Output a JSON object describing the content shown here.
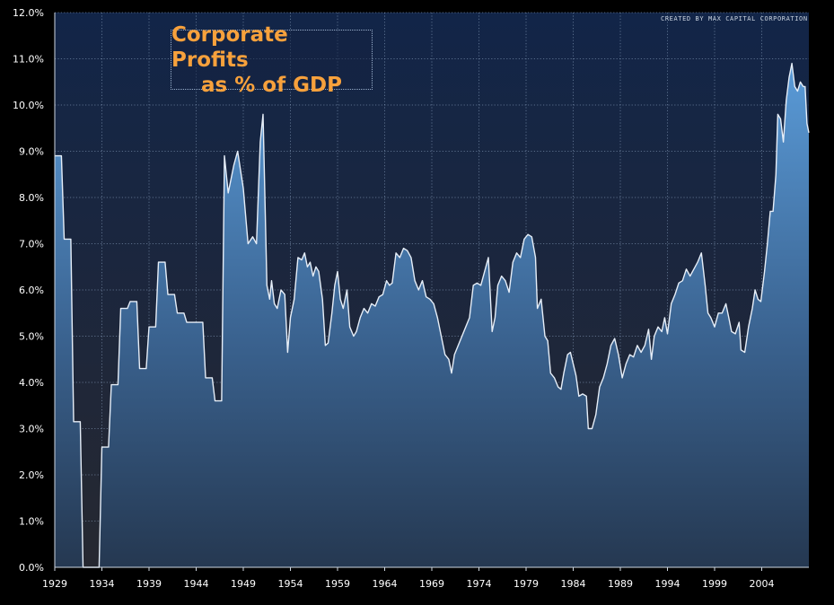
{
  "chart_data": {
    "type": "area",
    "title_lines": [
      "Corporate Profits",
      "as % of GDP"
    ],
    "credit": "CREATED BY MAX CAPITAL CORPORATION",
    "xlabel": "",
    "ylabel": "",
    "xlim": [
      1929,
      2009
    ],
    "ylim": [
      0,
      12
    ],
    "x_ticks": [
      "1929",
      "1934",
      "1939",
      "1944",
      "1949",
      "1954",
      "1959",
      "1964",
      "1969",
      "1974",
      "1979",
      "1984",
      "1989",
      "1994",
      "1999",
      "2004"
    ],
    "y_ticks": [
      "0.0%",
      "1.0%",
      "2.0%",
      "3.0%",
      "4.0%",
      "5.0%",
      "6.0%",
      "7.0%",
      "8.0%",
      "9.0%",
      "10.0%",
      "11.0%",
      "12.0%"
    ],
    "grid": true,
    "series": [
      {
        "values": [
          [
            1929.0,
            8.9
          ],
          [
            1929.7,
            8.9
          ],
          [
            1930.0,
            7.1
          ],
          [
            1930.7,
            7.1
          ],
          [
            1931.0,
            3.15
          ],
          [
            1931.7,
            3.15
          ],
          [
            1932.0,
            0.0
          ],
          [
            1933.7,
            0.0
          ],
          [
            1934.0,
            2.6
          ],
          [
            1934.7,
            2.6
          ],
          [
            1935.0,
            3.95
          ],
          [
            1935.7,
            3.95
          ],
          [
            1936.0,
            5.6
          ],
          [
            1936.7,
            5.6
          ],
          [
            1937.0,
            5.75
          ],
          [
            1937.7,
            5.75
          ],
          [
            1938.0,
            4.3
          ],
          [
            1938.7,
            4.3
          ],
          [
            1939.0,
            5.2
          ],
          [
            1939.7,
            5.2
          ],
          [
            1940.0,
            6.6
          ],
          [
            1940.7,
            6.6
          ],
          [
            1941.0,
            5.9
          ],
          [
            1941.7,
            5.9
          ],
          [
            1942.0,
            5.5
          ],
          [
            1942.7,
            5.5
          ],
          [
            1943.0,
            5.3
          ],
          [
            1944.7,
            5.3
          ],
          [
            1945.0,
            4.1
          ],
          [
            1945.7,
            4.1
          ],
          [
            1946.0,
            3.6
          ],
          [
            1946.7,
            3.6
          ],
          [
            1947.0,
            8.9
          ],
          [
            1947.4,
            8.1
          ],
          [
            1948.0,
            8.7
          ],
          [
            1948.4,
            9.0
          ],
          [
            1949.0,
            8.2
          ],
          [
            1949.5,
            7.0
          ],
          [
            1950.0,
            7.15
          ],
          [
            1950.4,
            7.0
          ],
          [
            1950.8,
            9.2
          ],
          [
            1951.1,
            9.8
          ],
          [
            1951.5,
            6.1
          ],
          [
            1951.8,
            5.8
          ],
          [
            1952.0,
            6.2
          ],
          [
            1952.3,
            5.7
          ],
          [
            1952.6,
            5.6
          ],
          [
            1953.0,
            6.0
          ],
          [
            1953.4,
            5.9
          ],
          [
            1953.7,
            4.65
          ],
          [
            1954.0,
            5.4
          ],
          [
            1954.4,
            5.8
          ],
          [
            1954.8,
            6.7
          ],
          [
            1955.2,
            6.65
          ],
          [
            1955.5,
            6.8
          ],
          [
            1955.8,
            6.5
          ],
          [
            1956.1,
            6.6
          ],
          [
            1956.4,
            6.3
          ],
          [
            1956.7,
            6.5
          ],
          [
            1957.0,
            6.4
          ],
          [
            1957.4,
            5.8
          ],
          [
            1957.7,
            4.8
          ],
          [
            1958.0,
            4.85
          ],
          [
            1958.4,
            5.5
          ],
          [
            1958.7,
            6.1
          ],
          [
            1959.0,
            6.4
          ],
          [
            1959.3,
            5.8
          ],
          [
            1959.6,
            5.6
          ],
          [
            1960.0,
            6.0
          ],
          [
            1960.3,
            5.2
          ],
          [
            1960.7,
            5.0
          ],
          [
            1961.0,
            5.1
          ],
          [
            1961.4,
            5.4
          ],
          [
            1961.8,
            5.6
          ],
          [
            1962.2,
            5.5
          ],
          [
            1962.6,
            5.7
          ],
          [
            1963.0,
            5.65
          ],
          [
            1963.4,
            5.85
          ],
          [
            1963.8,
            5.9
          ],
          [
            1964.2,
            6.2
          ],
          [
            1964.5,
            6.1
          ],
          [
            1964.8,
            6.15
          ],
          [
            1965.2,
            6.8
          ],
          [
            1965.6,
            6.7
          ],
          [
            1966.0,
            6.9
          ],
          [
            1966.4,
            6.85
          ],
          [
            1966.8,
            6.7
          ],
          [
            1967.2,
            6.2
          ],
          [
            1967.6,
            6.0
          ],
          [
            1968.0,
            6.2
          ],
          [
            1968.4,
            5.85
          ],
          [
            1968.8,
            5.8
          ],
          [
            1969.2,
            5.7
          ],
          [
            1969.6,
            5.4
          ],
          [
            1970.0,
            5.0
          ],
          [
            1970.4,
            4.6
          ],
          [
            1970.8,
            4.5
          ],
          [
            1971.1,
            4.2
          ],
          [
            1971.4,
            4.6
          ],
          [
            1971.8,
            4.8
          ],
          [
            1972.2,
            5.0
          ],
          [
            1972.6,
            5.2
          ],
          [
            1973.0,
            5.4
          ],
          [
            1973.4,
            6.1
          ],
          [
            1973.8,
            6.15
          ],
          [
            1974.2,
            6.1
          ],
          [
            1974.6,
            6.4
          ],
          [
            1975.0,
            6.7
          ],
          [
            1975.4,
            5.1
          ],
          [
            1975.7,
            5.4
          ],
          [
            1976.0,
            6.1
          ],
          [
            1976.4,
            6.3
          ],
          [
            1976.8,
            6.2
          ],
          [
            1977.2,
            5.95
          ],
          [
            1977.6,
            6.6
          ],
          [
            1978.0,
            6.8
          ],
          [
            1978.4,
            6.7
          ],
          [
            1978.8,
            7.1
          ],
          [
            1979.2,
            7.2
          ],
          [
            1979.6,
            7.15
          ],
          [
            1980.0,
            6.7
          ],
          [
            1980.2,
            5.6
          ],
          [
            1980.6,
            5.8
          ],
          [
            1981.0,
            5.0
          ],
          [
            1981.3,
            4.9
          ],
          [
            1981.6,
            4.2
          ],
          [
            1982.0,
            4.1
          ],
          [
            1982.4,
            3.9
          ],
          [
            1982.7,
            3.85
          ],
          [
            1983.0,
            4.2
          ],
          [
            1983.4,
            4.6
          ],
          [
            1983.7,
            4.65
          ],
          [
            1984.0,
            4.4
          ],
          [
            1984.3,
            4.15
          ],
          [
            1984.6,
            3.7
          ],
          [
            1985.0,
            3.75
          ],
          [
            1985.4,
            3.7
          ],
          [
            1985.6,
            3.0
          ],
          [
            1986.0,
            3.0
          ],
          [
            1986.4,
            3.3
          ],
          [
            1986.8,
            3.9
          ],
          [
            1987.2,
            4.1
          ],
          [
            1987.6,
            4.4
          ],
          [
            1988.0,
            4.8
          ],
          [
            1988.4,
            4.95
          ],
          [
            1988.8,
            4.6
          ],
          [
            1989.2,
            4.1
          ],
          [
            1989.6,
            4.4
          ],
          [
            1990.0,
            4.6
          ],
          [
            1990.4,
            4.55
          ],
          [
            1990.8,
            4.8
          ],
          [
            1991.2,
            4.65
          ],
          [
            1991.6,
            4.8
          ],
          [
            1992.0,
            5.15
          ],
          [
            1992.3,
            4.5
          ],
          [
            1992.6,
            5.0
          ],
          [
            1993.0,
            5.2
          ],
          [
            1993.4,
            5.1
          ],
          [
            1993.7,
            5.4
          ],
          [
            1994.0,
            5.05
          ],
          [
            1994.4,
            5.7
          ],
          [
            1994.8,
            5.9
          ],
          [
            1995.2,
            6.15
          ],
          [
            1995.6,
            6.2
          ],
          [
            1996.0,
            6.45
          ],
          [
            1996.4,
            6.3
          ],
          [
            1996.8,
            6.45
          ],
          [
            1997.2,
            6.6
          ],
          [
            1997.6,
            6.8
          ],
          [
            1998.0,
            6.1
          ],
          [
            1998.3,
            5.5
          ],
          [
            1998.6,
            5.4
          ],
          [
            1999.0,
            5.2
          ],
          [
            1999.4,
            5.5
          ],
          [
            1999.8,
            5.5
          ],
          [
            2000.2,
            5.7
          ],
          [
            2000.5,
            5.4
          ],
          [
            2000.8,
            5.1
          ],
          [
            2001.2,
            5.05
          ],
          [
            2001.6,
            5.3
          ],
          [
            2001.8,
            4.7
          ],
          [
            2002.2,
            4.65
          ],
          [
            2002.6,
            5.2
          ],
          [
            2003.0,
            5.6
          ],
          [
            2003.3,
            6.0
          ],
          [
            2003.6,
            5.8
          ],
          [
            2003.9,
            5.75
          ],
          [
            2004.3,
            6.4
          ],
          [
            2004.6,
            7.0
          ],
          [
            2004.9,
            7.7
          ],
          [
            2005.2,
            7.7
          ],
          [
            2005.5,
            8.5
          ],
          [
            2005.7,
            9.8
          ],
          [
            2006.0,
            9.7
          ],
          [
            2006.3,
            9.2
          ],
          [
            2006.6,
            10.1
          ],
          [
            2006.9,
            10.6
          ],
          [
            2007.2,
            10.9
          ],
          [
            2007.5,
            10.4
          ],
          [
            2007.8,
            10.3
          ],
          [
            2008.1,
            10.5
          ],
          [
            2008.4,
            10.4
          ],
          [
            2008.6,
            10.4
          ],
          [
            2008.8,
            9.6
          ],
          [
            2009.0,
            9.4
          ]
        ]
      }
    ]
  }
}
